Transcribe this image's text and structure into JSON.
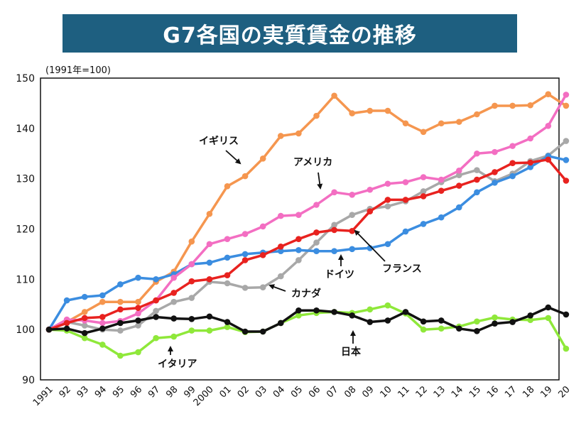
{
  "title": "G7各国の実質賃金の推移",
  "unit_note": "(1991年=100)",
  "chart_data": {
    "type": "line",
    "title": "G7各国の実質賃金の推移",
    "xlabel": "",
    "ylabel": "",
    "ylim": [
      90,
      150
    ],
    "y_ticks": [
      90,
      100,
      110,
      120,
      130,
      140,
      150
    ],
    "grid": false,
    "legend": "inline labels",
    "categories": [
      "1991",
      "92",
      "93",
      "94",
      "95",
      "96",
      "97",
      "98",
      "99",
      "2000",
      "01",
      "02",
      "03",
      "04",
      "05",
      "06",
      "07",
      "08",
      "09",
      "10",
      "11",
      "12",
      "13",
      "14",
      "15",
      "16",
      "17",
      "18",
      "19",
      "20"
    ],
    "series": [
      {
        "name": "イギリス",
        "color": "#f5964f",
        "values": [
          100,
          101.5,
          103.5,
          105.5,
          105.5,
          105.5,
          109.5,
          111.5,
          117.5,
          123,
          128.5,
          130.5,
          134,
          138.5,
          139,
          142.5,
          146.5,
          143,
          143.5,
          143.5,
          141,
          139.3,
          141,
          141.3,
          142.8,
          144.5,
          144.5,
          144.6,
          146.8,
          144.5
        ]
      },
      {
        "name": "アメリカ",
        "color": "#f36ec2",
        "values": [
          100,
          102,
          101.8,
          101.3,
          101.7,
          103.2,
          105.8,
          110.3,
          113,
          117,
          118,
          119,
          120.5,
          122.6,
          122.8,
          124.8,
          127.3,
          126.8,
          127.8,
          129,
          129.3,
          130.3,
          129.8,
          131.6,
          135,
          135.3,
          136.5,
          138,
          140.5,
          146.7
        ]
      },
      {
        "name": "フランス",
        "color": "#3b8de0",
        "values": [
          100,
          105.8,
          106.5,
          106.8,
          109,
          110.3,
          110,
          111,
          113,
          113.3,
          114.3,
          115,
          115.3,
          115.6,
          115.8,
          115.6,
          115.6,
          116,
          116.2,
          117,
          119.5,
          121,
          122.3,
          124.3,
          127.3,
          129.2,
          130.5,
          132.3,
          134.5,
          133.7
        ]
      },
      {
        "name": "ドイツ",
        "color": "#e8221f",
        "values": [
          100,
          101.3,
          102.3,
          102.5,
          104,
          104.3,
          105.8,
          107.3,
          109.6,
          110,
          110.8,
          113.8,
          114.8,
          116.5,
          118,
          119.3,
          119.8,
          119.6,
          123.5,
          125.8,
          125.8,
          126.5,
          127.6,
          128.6,
          129.8,
          131.3,
          133.1,
          133.2,
          133.8,
          129.6
        ]
      },
      {
        "name": "カナダ",
        "color": "#a8a8a8",
        "values": [
          100,
          101.5,
          100.8,
          100,
          99.8,
          100.8,
          103.7,
          105.5,
          106.3,
          109.5,
          109.2,
          108.3,
          108.4,
          110.6,
          113.8,
          117.3,
          120.8,
          122.8,
          124,
          124.5,
          125.5,
          127.5,
          129.3,
          130.7,
          131.7,
          129.5,
          131,
          133.5,
          134.6,
          137.5
        ]
      },
      {
        "name": "日本",
        "color": "#111111",
        "values": [
          100,
          100.2,
          99.3,
          100.2,
          101.3,
          101.8,
          102.5,
          102.2,
          102.1,
          102.6,
          101.5,
          99.6,
          99.6,
          101.3,
          103.8,
          103.8,
          103.5,
          102.8,
          101.5,
          101.8,
          103.5,
          101.6,
          101.8,
          100.2,
          99.7,
          101.2,
          101.5,
          102.8,
          104.4,
          103
        ]
      },
      {
        "name": "イタリア",
        "color": "#8fe83a",
        "values": [
          100,
          99.8,
          98.3,
          97,
          94.8,
          95.5,
          98.3,
          98.6,
          99.8,
          99.8,
          100.5,
          99.5,
          99.6,
          101.3,
          102.8,
          103.3,
          103.5,
          103.3,
          104,
          104.8,
          103.2,
          100,
          100.2,
          100.6,
          101.6,
          102.4,
          102,
          101.9,
          102.3,
          96.2
        ]
      }
    ],
    "annotations": [
      {
        "text": "イギリス",
        "series": "イギリス"
      },
      {
        "text": "アメリカ",
        "series": "アメリカ"
      },
      {
        "text": "フランス",
        "series": "フランス"
      },
      {
        "text": "ドイツ",
        "series": "ドイツ"
      },
      {
        "text": "カナダ",
        "series": "カナダ"
      },
      {
        "text": "日本",
        "series": "日本"
      },
      {
        "text": "イタリア",
        "series": "イタリア"
      }
    ]
  }
}
